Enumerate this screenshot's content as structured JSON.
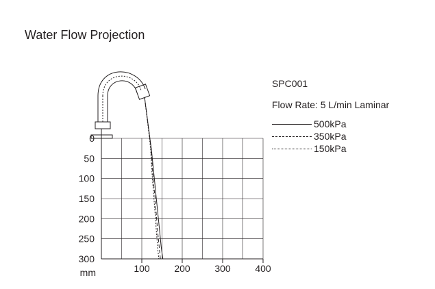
{
  "chart_data": {
    "type": "line",
    "title": "Water Flow Projection",
    "model": "SPC001",
    "flow_rate": "Flow Rate: 5 L/min Laminar",
    "xlabel": "",
    "ylabel": "",
    "y_unit_label": "mm",
    "xlim": [
      0,
      400
    ],
    "ylim": [
      0,
      300
    ],
    "y_inverted": true,
    "grid": true,
    "x_ticks": [
      100,
      200,
      300,
      400
    ],
    "y_ticks": [
      0,
      50,
      100,
      150,
      200,
      250,
      300
    ],
    "legend_position": "top-right",
    "series": [
      {
        "name": "500kPa",
        "style": "solid",
        "x": [
          120,
          124,
          128,
          132,
          136,
          140,
          144,
          148,
          152
        ],
        "y": [
          0,
          30,
          70,
          110,
          150,
          190,
          230,
          270,
          300
        ]
      },
      {
        "name": "350kPa",
        "style": "dashed",
        "x": [
          120,
          123,
          126,
          129,
          133,
          136,
          139,
          143,
          146
        ],
        "y": [
          0,
          30,
          70,
          110,
          150,
          190,
          230,
          270,
          300
        ]
      },
      {
        "name": "150kPa",
        "style": "dotted",
        "x": [
          119,
          122,
          124,
          127,
          130,
          133,
          136,
          139,
          142
        ],
        "y": [
          0,
          30,
          70,
          110,
          150,
          190,
          230,
          270,
          300
        ]
      }
    ]
  }
}
